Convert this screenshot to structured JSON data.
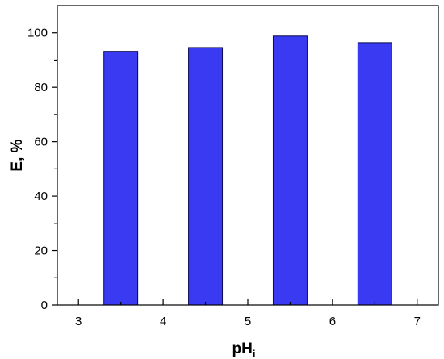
{
  "chart_data": {
    "type": "bar",
    "title": "",
    "xlabel": "pH",
    "xlabel_subscript": "i",
    "ylabel": "E, %",
    "x": [
      3.5,
      4.5,
      5.5,
      6.5
    ],
    "values": [
      93.2,
      94.6,
      98.8,
      96.4
    ],
    "bar_width": 0.4,
    "xlim": [
      2.75,
      7.25
    ],
    "ylim": [
      0,
      110
    ],
    "x_ticks": [
      3,
      4,
      5,
      6,
      7
    ],
    "y_ticks": [
      0,
      20,
      40,
      60,
      80,
      100
    ],
    "grid": false,
    "bar_color": "#3a3af2",
    "bar_edge_color": "#0a0a50"
  }
}
